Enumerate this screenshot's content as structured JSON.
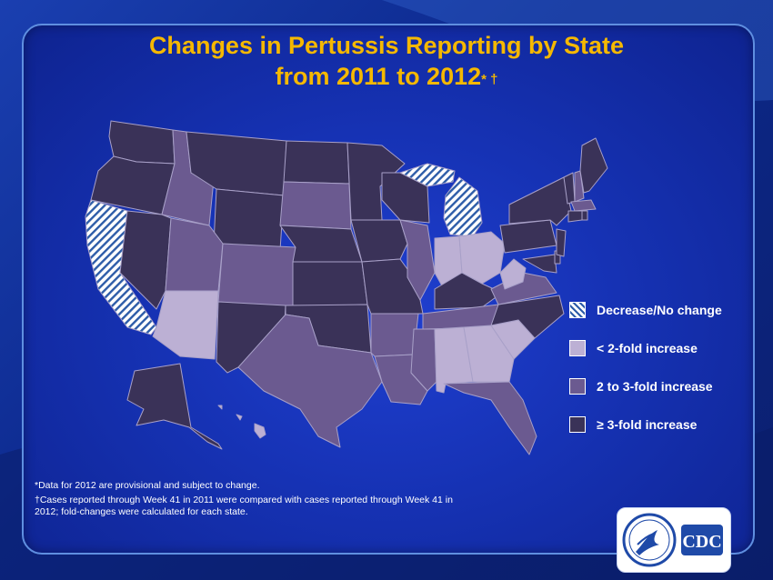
{
  "title": {
    "line1": "Changes in Pertussis Reporting by State",
    "line2": "from 2011 to 2012",
    "marks": "* †"
  },
  "colors": {
    "decrease": "#ffffff",
    "decrease_hatch": "#2d5ca8",
    "lt2": "#bcb0d4",
    "two_to_three": "#6b5a90",
    "ge3": "#3a3258",
    "border": "#a8a0c8"
  },
  "legend": [
    {
      "key": "decrease",
      "label": "Decrease/No change"
    },
    {
      "key": "lt2",
      "label": "< 2-fold increase"
    },
    {
      "key": "two_to_three",
      "label": "2 to 3-fold increase"
    },
    {
      "key": "ge3",
      "label": "≥ 3-fold increase"
    }
  ],
  "footnotes": {
    "note1": "*Data  for 2012  are provisional and subject to change.",
    "note2a": "†Cases reported through Week 41 in 2011  were compared with cases reported through Week 41 in",
    "note2b": "2012;  fold-changes were calculated for each state."
  },
  "logo": {
    "text": "CDC",
    "icon": "hhs-eagle-icon"
  }
}
